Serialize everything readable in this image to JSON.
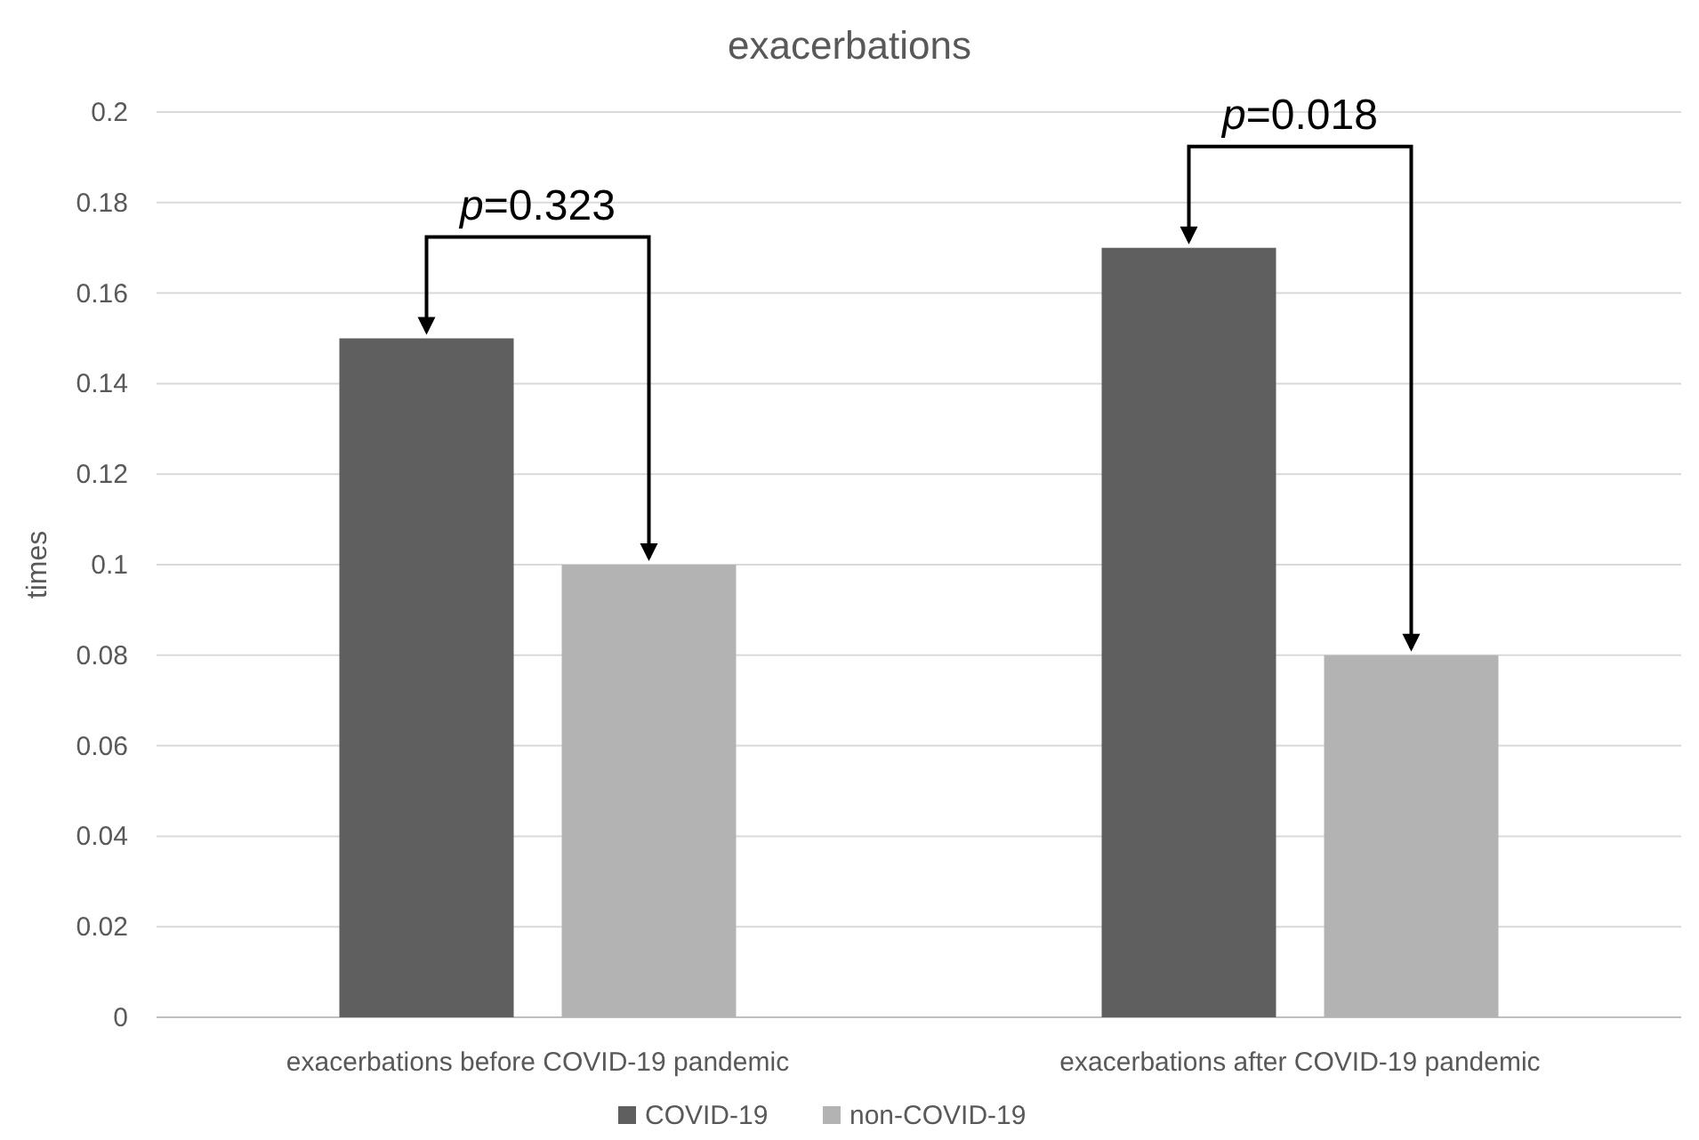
{
  "chart_data": {
    "type": "bar",
    "title": "exacerbations",
    "ylabel": "times",
    "categories": [
      "exacerbations before COVID-19 pandemic",
      "exacerbations after COVID-19 pandemic"
    ],
    "series": [
      {
        "name": "COVID-19",
        "color": "#5f5f5f",
        "values": [
          0.15,
          0.17
        ]
      },
      {
        "name": "non-COVID-19",
        "color": "#b3b3b3",
        "values": [
          0.1,
          0.08
        ]
      }
    ],
    "ylim": [
      0,
      0.2
    ],
    "yticks": [
      0,
      0.02,
      0.04,
      0.06,
      0.08,
      0.1,
      0.12,
      0.14,
      0.16,
      0.18,
      0.2
    ],
    "grid": "y",
    "legend": "bottom",
    "annotations": [
      "p=0.323",
      "p=0.018"
    ]
  }
}
